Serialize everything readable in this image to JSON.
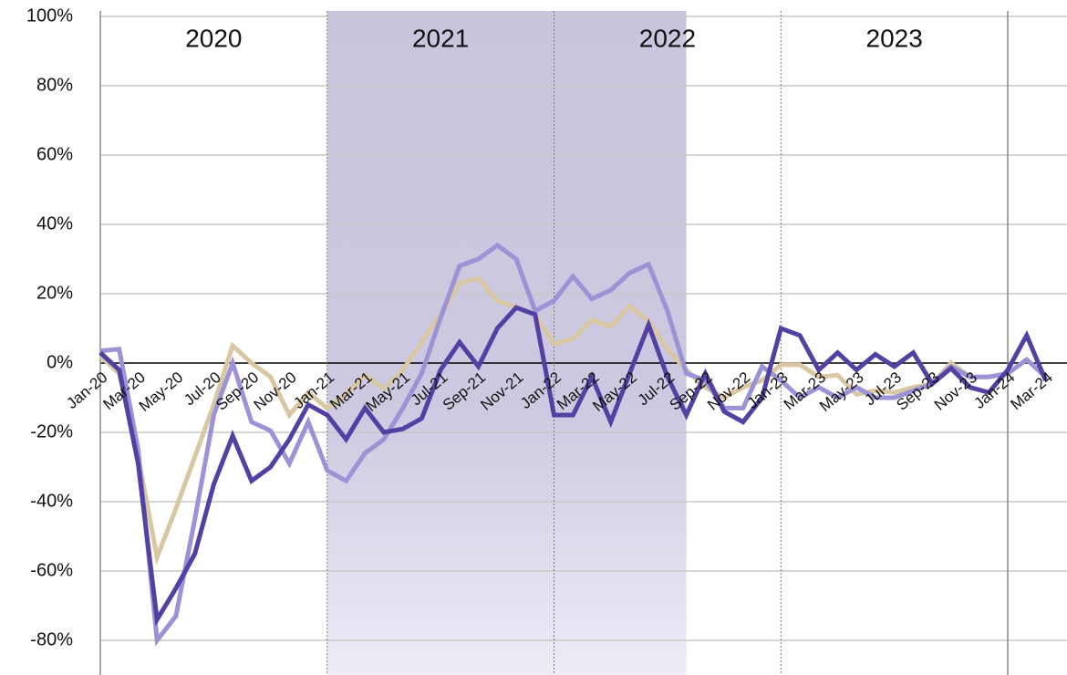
{
  "chart_data": {
    "type": "line",
    "categories": [
      "Jan-20",
      null,
      "Mar-20",
      null,
      "May-20",
      null,
      "Jul-20",
      null,
      "Sep-20",
      null,
      "Nov-20",
      null,
      "Jan-21",
      null,
      "Mar-21",
      null,
      "May-21",
      null,
      "Jul-21",
      null,
      "Sep-21",
      null,
      "Nov-21",
      null,
      "Jan-22",
      null,
      "Mar-22",
      null,
      "May-22",
      null,
      "Jul-22",
      null,
      "Sep-22",
      null,
      "Nov-22",
      null,
      "Jan-23",
      null,
      "Mar-23",
      null,
      "May-23",
      null,
      "Jul-23",
      null,
      "Sep-23",
      null,
      "Nov-23",
      null,
      "Jan-24",
      null,
      "Mar-24"
    ],
    "series": [
      {
        "color": "#d8c7a2",
        "values": [
          2,
          -3,
          -27,
          -56,
          -42,
          -27,
          -12,
          5,
          0,
          -4,
          -15,
          -8.5,
          -13,
          -9,
          -3.5,
          -7.5,
          -2,
          6,
          14,
          23,
          24.5,
          18,
          16,
          14,
          5.5,
          7,
          12.5,
          10.5,
          16.5,
          12,
          4,
          -2,
          -7,
          -10,
          -7,
          -5,
          -0.5,
          -0.5,
          -4,
          -3.5,
          -9,
          -8,
          -8.5,
          -7,
          -6,
          0,
          -4,
          -4,
          -3,
          1,
          -4
        ]
      },
      {
        "color": "#9c92d6",
        "values": [
          3.5,
          4,
          -25,
          -80,
          -73,
          -45,
          -15,
          0,
          -17,
          -19.5,
          -29,
          -17,
          -31,
          -34,
          -26,
          -22,
          -13,
          -3,
          13,
          28,
          30,
          34,
          30,
          15,
          18,
          25,
          18.5,
          21,
          26,
          28.5,
          15,
          -3,
          -5,
          -13,
          -13,
          -1,
          -5,
          -10,
          -7,
          -10,
          -7,
          -10,
          -10,
          -8,
          -6,
          -1,
          -4,
          -4,
          -3,
          1,
          -4
        ]
      },
      {
        "color": "#5340a2",
        "values": [
          3,
          -2,
          -29,
          -74,
          -65,
          -55,
          -35,
          -21,
          -34,
          -30,
          -22,
          -12,
          -15,
          -22,
          -13,
          -20,
          -19,
          -16,
          -2,
          6,
          -1,
          10,
          16,
          14,
          -15,
          -15,
          -4,
          -17,
          -3,
          11,
          -4,
          -15,
          -3,
          -14,
          -17,
          -10,
          10,
          8,
          -2,
          3,
          -2,
          2.5,
          -1,
          3,
          -6,
          -1.5,
          -7,
          -8.5,
          -2,
          8,
          -5
        ]
      }
    ],
    "year_labels": [
      "2020",
      "2021",
      "2022",
      "2023"
    ],
    "shade": {
      "start": 12,
      "end": 31
    },
    "ylim": [
      -90,
      100
    ],
    "yticks": [
      {
        "value": -80,
        "label": "-80%"
      },
      {
        "value": -60,
        "label": "-60%"
      },
      {
        "value": -40,
        "label": "-40%"
      },
      {
        "value": -20,
        "label": "-20%"
      },
      {
        "value": 0,
        "label": "0%"
      },
      {
        "value": 20,
        "label": "20%"
      },
      {
        "value": 40,
        "label": "40%"
      },
      {
        "value": 60,
        "label": "60%"
      },
      {
        "value": 80,
        "label": "80%"
      },
      {
        "value": 100,
        "label": "100%"
      }
    ],
    "grid": true
  }
}
